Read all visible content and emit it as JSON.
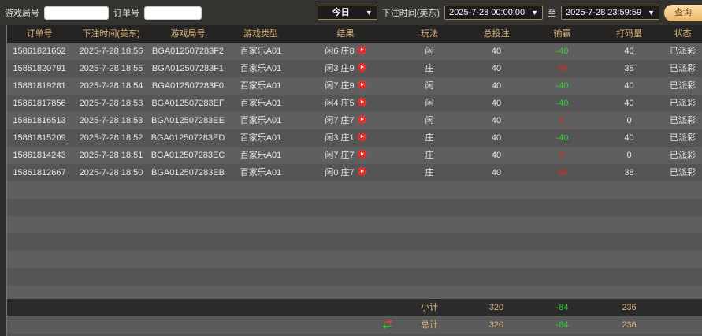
{
  "filters": {
    "round_label": "游戏局号",
    "round_value": "",
    "order_label": "订单号",
    "order_value": "",
    "period": "今日",
    "time_label": "下注时间(美东)",
    "start": "2025-7-28 00:00:00",
    "to_label": "至",
    "end": "2025-7-28 23:59:59",
    "query": "查询"
  },
  "columns": [
    "订单号",
    "下注时间(美东)",
    "游戏局号",
    "游戏类型",
    "结果",
    "玩法",
    "总投注",
    "输赢",
    "打码量",
    "状态"
  ],
  "rows": [
    [
      "15861821652",
      "2025-7-28 18:56",
      "BGA012507283F2",
      "百家乐A01",
      "闲6 庄8",
      "闲",
      "40",
      "-40",
      "40",
      "已派彩"
    ],
    [
      "15861820791",
      "2025-7-28 18:55",
      "BGA012507283F1",
      "百家乐A01",
      "闲3 庄9",
      "庄",
      "40",
      "38",
      "38",
      "已派彩"
    ],
    [
      "15861819281",
      "2025-7-28 18:54",
      "BGA012507283F0",
      "百家乐A01",
      "闲7 庄9",
      "闲",
      "40",
      "-40",
      "40",
      "已派彩"
    ],
    [
      "15861817856",
      "2025-7-28 18:53",
      "BGA012507283EF",
      "百家乐A01",
      "闲4 庄5",
      "闲",
      "40",
      "-40",
      "40",
      "已派彩"
    ],
    [
      "15861816513",
      "2025-7-28 18:53",
      "BGA012507283EE",
      "百家乐A01",
      "闲7 庄7",
      "闲",
      "40",
      "0",
      "0",
      "已派彩"
    ],
    [
      "15861815209",
      "2025-7-28 18:52",
      "BGA012507283ED",
      "百家乐A01",
      "闲3 庄1",
      "庄",
      "40",
      "-40",
      "40",
      "已派彩"
    ],
    [
      "15861814243",
      "2025-7-28 18:51",
      "BGA012507283EC",
      "百家乐A01",
      "闲7 庄7",
      "庄",
      "40",
      "0",
      "0",
      "已派彩"
    ],
    [
      "15861812667",
      "2025-7-28 18:50",
      "BGA012507283EB",
      "百家乐A01",
      "闲0 庄7",
      "庄",
      "40",
      "38",
      "38",
      "已派彩"
    ]
  ],
  "subtotal": {
    "label": "小计",
    "bet": "320",
    "winloss": "-84",
    "turnover": "236"
  },
  "total": {
    "label": "总计",
    "bet": "320",
    "winloss": "-84",
    "turnover": "236"
  },
  "colors": {
    "win": "#d82a2a",
    "loss": "#2fd12f",
    "header_text": "#d9b37a"
  }
}
